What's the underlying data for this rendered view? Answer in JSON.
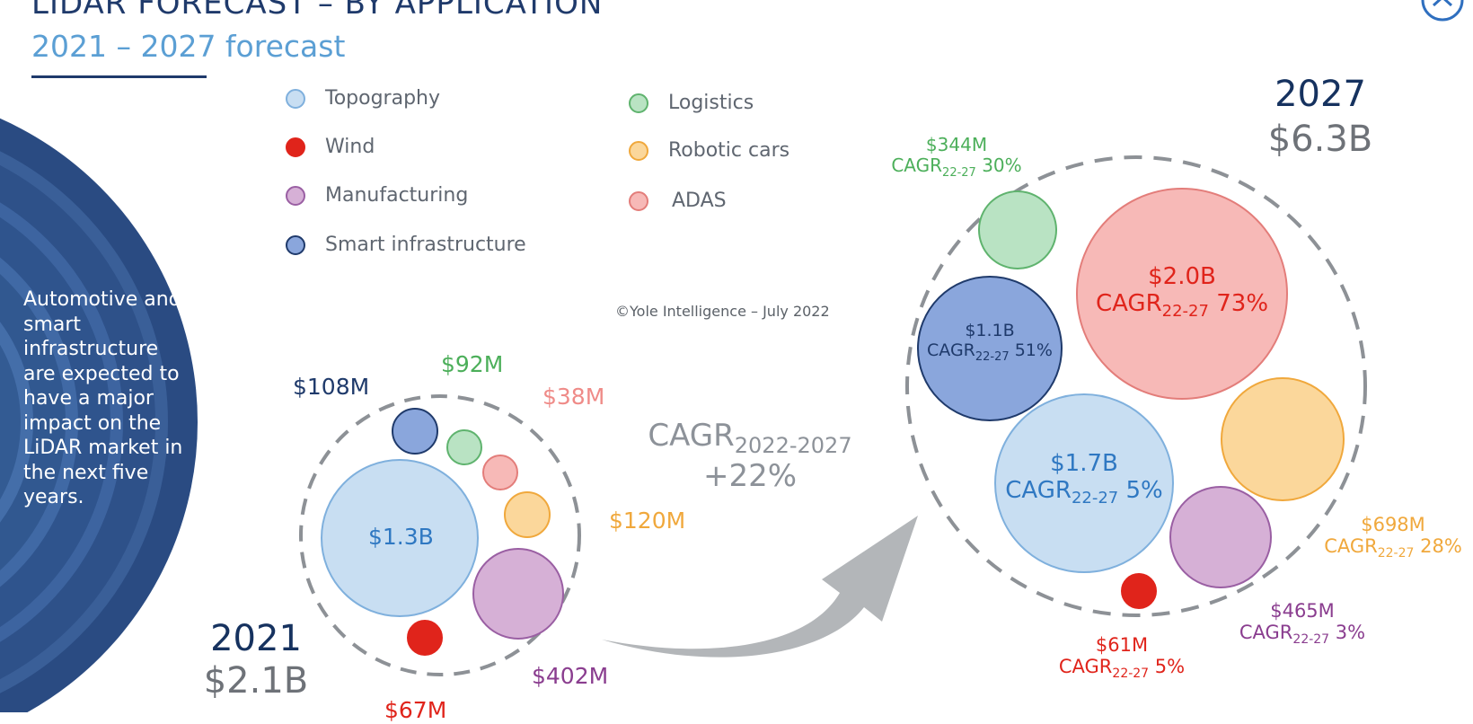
{
  "header": {
    "title": "LIDAR FORECAST – BY APPLICATION",
    "subtitle": "2021 – 2027 forecast"
  },
  "side_panel": {
    "text": "Automotive and smart infrastructure are expected to have a major impact on the LiDAR market in the next five years."
  },
  "legend": [
    {
      "label": "Topography",
      "color": "#c8def2",
      "border": "#7fb0dd"
    },
    {
      "label": "Wind",
      "color": "#e0241b",
      "border": "#e0241b"
    },
    {
      "label": "Manufacturing",
      "color": "#d6b0d6",
      "border": "#9a5fa3"
    },
    {
      "label": "Smart infrastructure",
      "color": "#8aa6dc",
      "border": "#1f3a6b"
    },
    {
      "label": "Logistics",
      "color": "#b9e3c3",
      "border": "#5fb36e"
    },
    {
      "label": "Robotic cars",
      "color": "#fbd79b",
      "border": "#f0a83c"
    },
    {
      "label": "ADAS",
      "color": "#f7b9b7",
      "border": "#e37d7a"
    }
  ],
  "copyright": "©Yole Intelligence – July 2022",
  "left_total": {
    "year": "2021",
    "value": "$2.1B"
  },
  "right_total": {
    "year": "2027",
    "value": "$6.3B"
  },
  "cagr": {
    "prefix": "CAGR",
    "sub": "2022-2027",
    "value": "+22%"
  },
  "labels_2021": {
    "smart_infra": "$108M",
    "logistics": "$92M",
    "adas": "$38M",
    "robotic": "$120M",
    "topography": "$1.3B",
    "manufacturing": "$402M",
    "wind": "$67M"
  },
  "labels_2027": {
    "logistics": {
      "value": "$344M",
      "cagr": "30%"
    },
    "adas": {
      "value": "$2.0B",
      "cagr": "73%"
    },
    "smart_infra": {
      "value": "$1.1B",
      "cagr": "51%"
    },
    "topography": {
      "value": "$1.7B",
      "cagr": "5%"
    },
    "robotic": {
      "value": "$698M",
      "cagr": "28%"
    },
    "manufacturing": {
      "value": "$465M",
      "cagr": "3%"
    },
    "wind": {
      "value": "$61M",
      "cagr": "5%"
    },
    "cagr_prefix": "CAGR",
    "cagr_sub": "22-27"
  },
  "colors": {
    "navy": "#1f3a6b",
    "light_blue": "#5b9fd4",
    "grey": "#6e7278",
    "green": "#4caf5a",
    "red": "#e0241b",
    "pink": "#ef8b88",
    "orange": "#f0a83c",
    "purple": "#8a3d8f",
    "blue_text": "#2f78c2"
  },
  "icons": {
    "close": "circle-chevron-up-icon"
  }
}
